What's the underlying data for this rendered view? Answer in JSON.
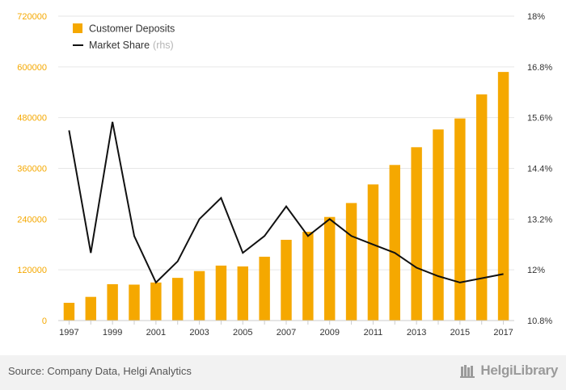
{
  "chart_data": {
    "type": "bar",
    "categories": [
      "1997",
      "1998",
      "1999",
      "2000",
      "2001",
      "2002",
      "2003",
      "2004",
      "2005",
      "2006",
      "2007",
      "2008",
      "2009",
      "2010",
      "2011",
      "2012",
      "2013",
      "2014",
      "2015",
      "2016",
      "2017"
    ],
    "x_tick_labels": [
      "1997",
      "1999",
      "2001",
      "2003",
      "2005",
      "2007",
      "2009",
      "2011",
      "2013",
      "2015",
      "2017"
    ],
    "series": [
      {
        "name": "Customer Deposits",
        "type": "bar",
        "axis": "left",
        "color": "#f5a800",
        "values": [
          42000,
          56000,
          86000,
          85000,
          90000,
          101000,
          117000,
          130000,
          128000,
          151000,
          191000,
          210000,
          245000,
          278000,
          322000,
          368000,
          410000,
          452000,
          478000,
          535000,
          588000
        ]
      },
      {
        "name": "Market Share",
        "legend_suffix": "(rhs)",
        "type": "line",
        "axis": "right",
        "color": "#111111",
        "values": [
          15.3,
          12.4,
          15.5,
          12.8,
          11.7,
          12.2,
          13.2,
          13.7,
          12.4,
          12.8,
          13.5,
          12.8,
          13.2,
          12.8,
          12.6,
          12.4,
          12.05,
          11.85,
          11.7,
          11.8,
          11.9
        ]
      }
    ],
    "y_left": {
      "ylim": [
        0,
        720000
      ],
      "ticks": [
        "0",
        "120000",
        "240000",
        "360000",
        "480000",
        "600000",
        "720000"
      ],
      "color": "#f5a800"
    },
    "y_right": {
      "ylim": [
        10.8,
        18
      ],
      "ticks": [
        "10.8%",
        "12%",
        "13.2%",
        "14.4%",
        "15.6%",
        "16.8%",
        "18%"
      ]
    },
    "grid": true,
    "legend_position": "top-left"
  },
  "footer": {
    "source": "Source: Company Data, Helgi Analytics",
    "brand": "HelgiLibrary",
    "brand_icon": "library-icon"
  }
}
